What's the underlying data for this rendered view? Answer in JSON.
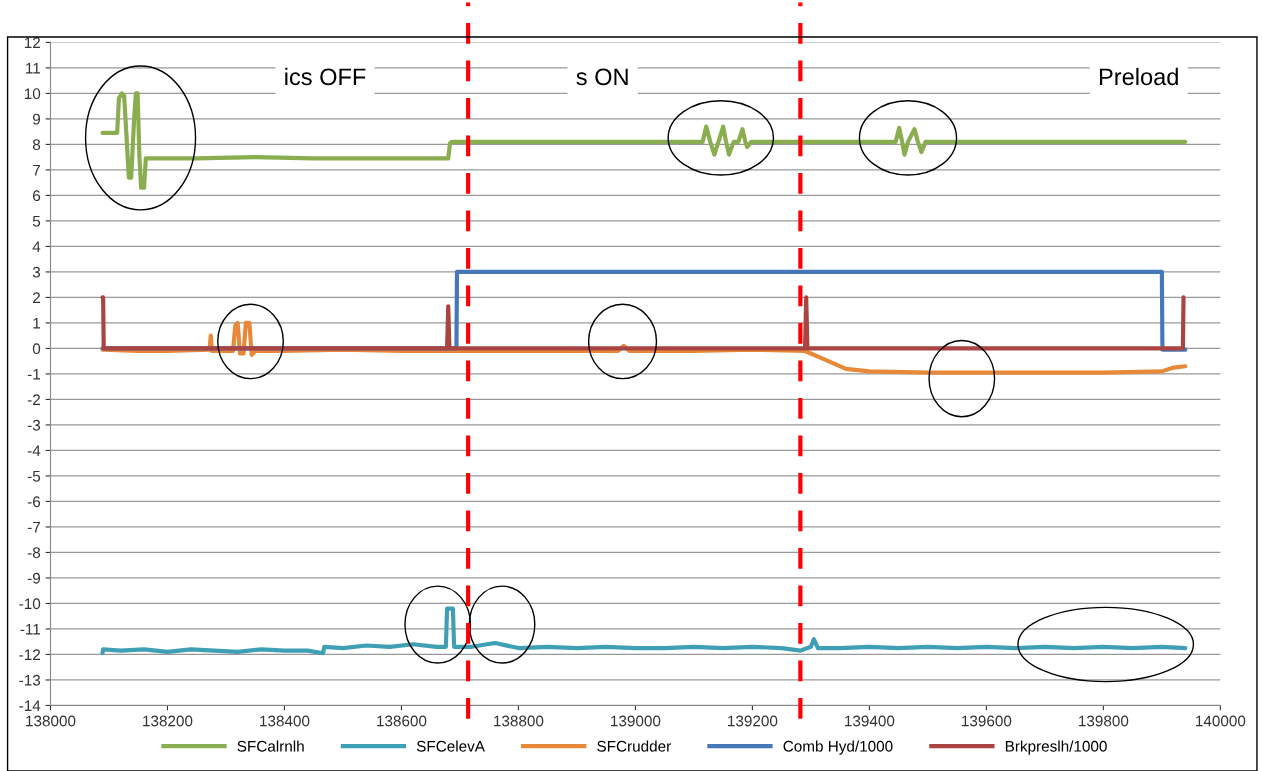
{
  "chart_data": {
    "type": "line",
    "xlim": [
      138000,
      140000
    ],
    "xticks": [
      138000,
      138200,
      138400,
      138600,
      138800,
      139000,
      139200,
      139400,
      139600,
      139800,
      140000
    ],
    "ylim": [
      -14,
      12
    ],
    "yticks": [
      -14,
      -13,
      -12,
      -11,
      -10,
      -9,
      -8,
      -7,
      -6,
      -5,
      -4,
      -3,
      -2,
      -1,
      0,
      1,
      2,
      3,
      4,
      5,
      6,
      7,
      8,
      9,
      10,
      11,
      12
    ],
    "grid": "y",
    "legend": "bottom",
    "marker": "none",
    "line_style": "solid",
    "ref_lines": [
      {
        "axis": "x",
        "value": 138714,
        "label": null,
        "color": "#ff0000",
        "line_style": "dashed"
      },
      {
        "axis": "x",
        "value": 139282,
        "label": null,
        "color": "#ff0000",
        "line_style": "dashed"
      }
    ],
    "annotations": [
      "ics OFF",
      "s ON",
      "Preload"
    ],
    "series": [
      {
        "name": "SFCalrnlh",
        "color": "#8aae4f",
        "x": [
          138089,
          138114,
          138117,
          138122,
          138126,
          138134,
          138138,
          138143,
          138146,
          138149,
          138152,
          138155,
          138160,
          138163,
          138166,
          138250,
          138350,
          138450,
          138550,
          138650,
          138680,
          138683,
          138686,
          138750,
          138850,
          138950,
          139050,
          139115,
          139121,
          139128,
          139135,
          139142,
          139150,
          139155,
          139160,
          139168,
          139176,
          139183,
          139188,
          139191,
          139198,
          139300,
          139400,
          139445,
          139451,
          139456,
          139460,
          139466,
          139477,
          139483,
          139489,
          139496,
          139550,
          139650,
          139750,
          139850,
          139940
        ],
        "values": [
          8.45,
          8.45,
          9.8,
          10.0,
          9.9,
          6.7,
          6.7,
          9.0,
          10.0,
          10.0,
          7.5,
          6.3,
          6.3,
          7.45,
          7.45,
          7.45,
          7.5,
          7.45,
          7.45,
          7.45,
          7.45,
          8.05,
          8.1,
          8.1,
          8.1,
          8.1,
          8.1,
          8.1,
          8.7,
          8.1,
          7.6,
          8.1,
          8.7,
          8.1,
          7.6,
          8.1,
          8.1,
          8.6,
          8.1,
          7.9,
          8.1,
          8.1,
          8.1,
          8.1,
          8.65,
          8.1,
          7.6,
          8.1,
          8.6,
          8.1,
          7.7,
          8.1,
          8.1,
          8.1,
          8.1,
          8.1,
          8.1
        ]
      },
      {
        "name": "SFCelevA",
        "color": "#3f9fb5",
        "x": [
          138089,
          138090,
          138120,
          138160,
          138200,
          138240,
          138280,
          138320,
          138360,
          138400,
          138440,
          138466,
          138468,
          138500,
          138540,
          138580,
          138620,
          138660,
          138676,
          138678,
          138688,
          138690,
          138720,
          138760,
          138800,
          138850,
          138900,
          138950,
          139000,
          139050,
          139100,
          139150,
          139200,
          139250,
          139282,
          139300,
          139305,
          139312,
          139350,
          139400,
          139450,
          139500,
          139550,
          139600,
          139650,
          139700,
          139750,
          139800,
          139850,
          139900,
          139940
        ],
        "values": [
          -11.95,
          -11.8,
          -11.85,
          -11.8,
          -11.9,
          -11.8,
          -11.85,
          -11.9,
          -11.8,
          -11.85,
          -11.85,
          -11.95,
          -11.7,
          -11.75,
          -11.65,
          -11.7,
          -11.6,
          -11.7,
          -11.7,
          -10.2,
          -10.2,
          -11.7,
          -11.7,
          -11.55,
          -11.75,
          -11.7,
          -11.75,
          -11.7,
          -11.75,
          -11.75,
          -11.7,
          -11.75,
          -11.7,
          -11.75,
          -11.85,
          -11.7,
          -11.4,
          -11.75,
          -11.75,
          -11.7,
          -11.75,
          -11.7,
          -11.75,
          -11.7,
          -11.75,
          -11.7,
          -11.75,
          -11.7,
          -11.75,
          -11.7,
          -11.75
        ]
      },
      {
        "name": "SFCrudder",
        "color": "#e8893a",
        "x": [
          138089,
          138150,
          138200,
          138272,
          138274,
          138276,
          138312,
          138316,
          138320,
          138324,
          138330,
          138334,
          138340,
          138344,
          138350,
          138400,
          138500,
          138600,
          138700,
          138800,
          138900,
          138970,
          138980,
          138990,
          139100,
          139200,
          139290,
          139320,
          139360,
          139400,
          139500,
          139600,
          139700,
          139800,
          139900,
          139920,
          139940
        ],
        "values": [
          -0.05,
          -0.1,
          -0.1,
          -0.05,
          0.5,
          -0.1,
          -0.1,
          0.9,
          1.0,
          -0.2,
          -0.2,
          1.0,
          1.0,
          -0.25,
          -0.1,
          -0.1,
          -0.05,
          -0.1,
          -0.1,
          -0.1,
          -0.1,
          -0.1,
          0.1,
          -0.1,
          -0.1,
          -0.05,
          -0.1,
          -0.4,
          -0.8,
          -0.9,
          -0.95,
          -0.95,
          -0.95,
          -0.95,
          -0.9,
          -0.75,
          -0.7
        ]
      },
      {
        "name": "Comb Hyd/1000",
        "color": "#4677b8",
        "x": [
          138089,
          138694,
          138695,
          139900,
          139901,
          139940
        ],
        "values": [
          0,
          0,
          3,
          3,
          -0.05,
          -0.05
        ]
      },
      {
        "name": "Brkpreslh/1000",
        "color": "#a94442",
        "x": [
          138089,
          138090,
          138091,
          138678,
          138680,
          138682,
          139290,
          139292,
          139294,
          139700,
          139934,
          139936,
          139937
        ],
        "values": [
          2,
          2,
          0,
          0,
          1.65,
          0,
          0,
          2,
          0,
          0,
          0,
          0,
          2
        ]
      }
    ]
  }
}
